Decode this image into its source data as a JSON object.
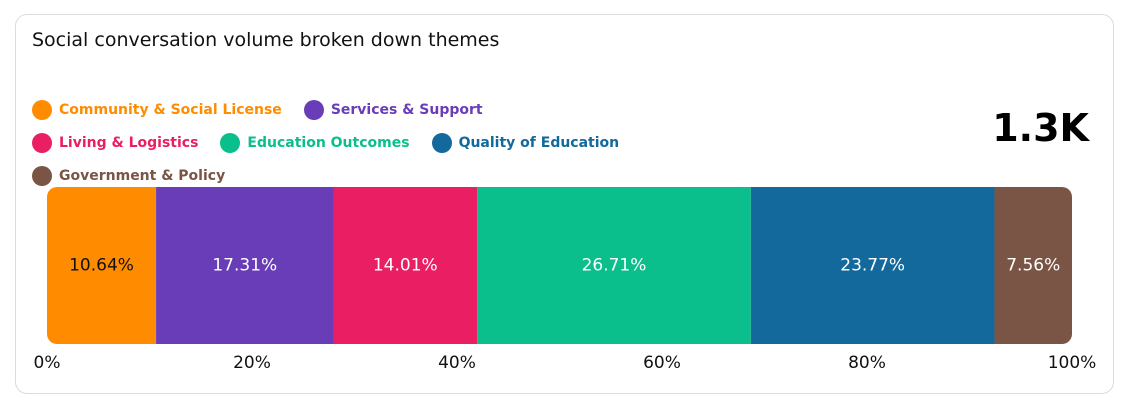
{
  "chart_data": {
    "type": "stacked-bar-100",
    "title": "Social conversation volume broken down themes",
    "annotation": "1.3K",
    "series": [
      {
        "name": "Community & Social License",
        "color": "#ff8c00",
        "values": [
          10.64
        ],
        "value_labels": [
          "10.64%"
        ]
      },
      {
        "name": "Services & Support",
        "color": "#6a3db8",
        "values": [
          17.31
        ],
        "value_labels": [
          "17.31%"
        ]
      },
      {
        "name": "Living & Logistics",
        "color": "#e91e63",
        "values": [
          14.01
        ],
        "value_labels": [
          "14.01%"
        ]
      },
      {
        "name": "Education Outcomes",
        "color": "#0abf8c",
        "values": [
          26.71
        ],
        "value_labels": [
          "26.71%"
        ]
      },
      {
        "name": "Quality of Education",
        "color": "#13699c",
        "values": [
          23.77
        ],
        "value_labels": [
          "23.77%"
        ]
      },
      {
        "name": "Government & Policy",
        "color": "#7a5546",
        "values": [
          7.56
        ],
        "value_labels": [
          "7.56%"
        ]
      }
    ],
    "xlim": [
      0,
      100
    ],
    "xticks": [
      {
        "value": 0,
        "label": "0%"
      },
      {
        "value": 20,
        "label": "20%"
      },
      {
        "value": 40,
        "label": "40%"
      },
      {
        "value": 60,
        "label": "60%"
      },
      {
        "value": 80,
        "label": "80%"
      },
      {
        "value": 100,
        "label": "100%"
      }
    ]
  }
}
